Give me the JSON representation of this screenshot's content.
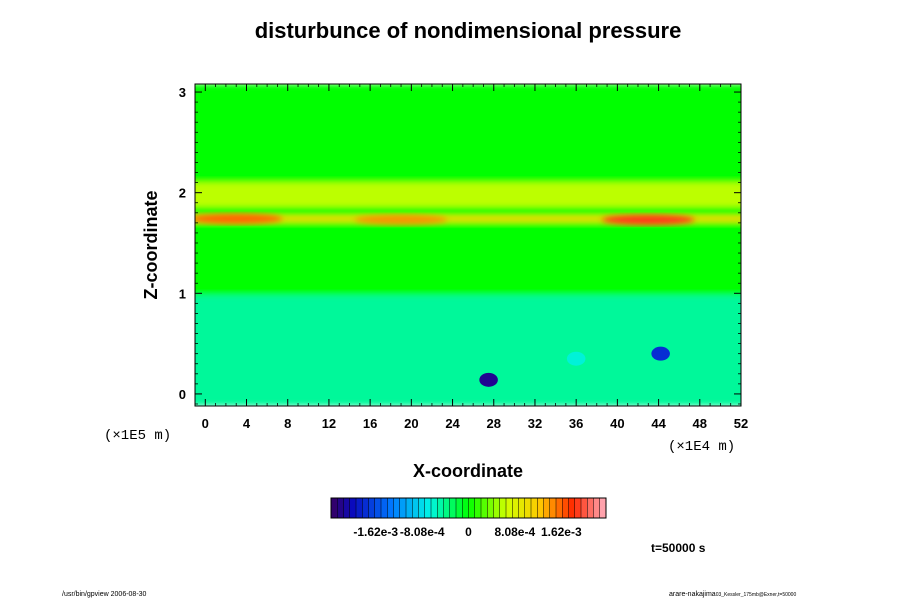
{
  "chart_data": {
    "type": "heatmap",
    "title": "disturbunce of nondimensional pressure",
    "xlabel": "X-coordinate",
    "ylabel": "Z-coordinate",
    "x_unit": "(×1E4 m)",
    "y_unit": "(×1E5 m)",
    "xlim": [
      -1,
      52
    ],
    "ylim": [
      -0.12,
      3.08
    ],
    "x_ticks": [
      0,
      4,
      8,
      12,
      16,
      20,
      24,
      28,
      32,
      36,
      40,
      44,
      48,
      52
    ],
    "y_ticks": [
      0,
      1,
      2,
      3
    ],
    "colorbar": {
      "range": [
        -0.0024,
        0.0024
      ],
      "tick_values": [
        -0.00162,
        -0.000808,
        0,
        0.000808,
        0.00162
      ],
      "tick_labels": [
        "-1.62e-3",
        "-8.08e-4",
        "0",
        "8.08e-4",
        "1.62e-3"
      ]
    },
    "field_features": [
      {
        "kind": "background",
        "z_range": [
          0.98,
          3.08
        ],
        "value": 0.0
      },
      {
        "kind": "background",
        "z_range": [
          -0.12,
          0.98
        ],
        "value": -0.00045
      },
      {
        "kind": "band",
        "z_center": 1.98,
        "z_halfwidth": 0.12,
        "value": 0.0006
      },
      {
        "kind": "band",
        "z_center": 1.74,
        "z_halfwidth": 0.03,
        "value": 0.0011
      },
      {
        "kind": "blob",
        "x": 3,
        "z": 1.74,
        "value": 0.0016
      },
      {
        "kind": "blob",
        "x": 19,
        "z": 1.73,
        "value": 0.0015
      },
      {
        "kind": "blob",
        "x": 43,
        "z": 1.73,
        "value": 0.0019
      },
      {
        "kind": "blob",
        "x": 27.5,
        "z": 0.14,
        "value": -0.0022
      },
      {
        "kind": "blob",
        "x": 44.2,
        "z": 0.4,
        "value": -0.0018
      },
      {
        "kind": "blob",
        "x": 36,
        "z": 0.35,
        "value": -0.0007
      }
    ]
  },
  "time_label": "t=50000 s",
  "footer_left": "/usr/bin/gpview 2006-08-30",
  "footer_right": "arare-nakajima",
  "footer_right_small": "03_Kessler_175mb@Exner,t=50000"
}
